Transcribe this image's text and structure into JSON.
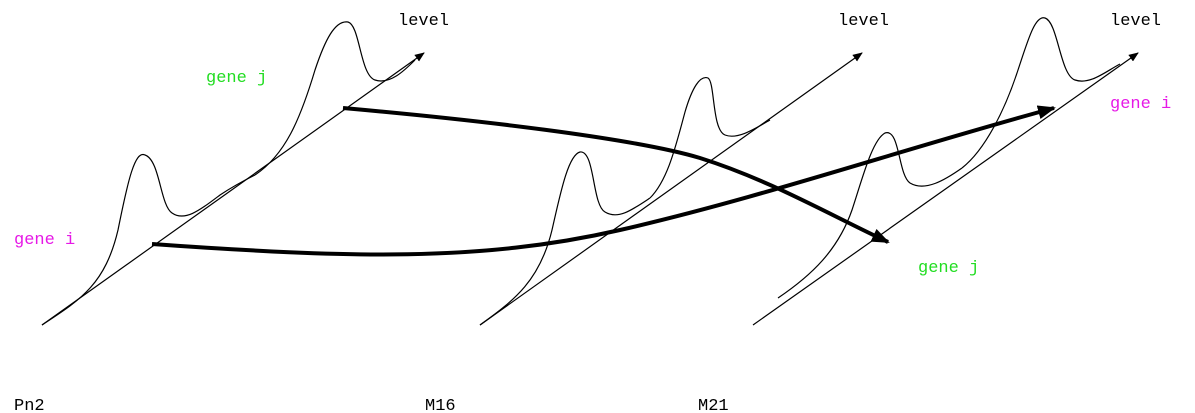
{
  "colors": {
    "gene_i": "#e619e6",
    "gene_j": "#22dd22",
    "ink": "#000000"
  },
  "panels": [
    {
      "sample_label": "Pn2",
      "axis_label": "level",
      "gene_i_label": "gene i",
      "gene_j_label": "gene j"
    },
    {
      "sample_label": "M16",
      "axis_label": "level"
    },
    {
      "sample_label": "M21",
      "axis_label": "level",
      "gene_i_label": "gene i",
      "gene_j_label": "gene j"
    }
  ]
}
